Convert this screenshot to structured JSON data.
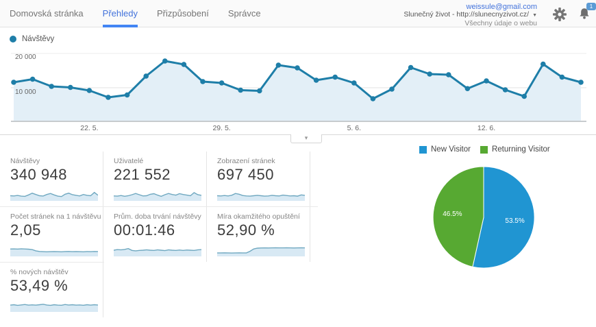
{
  "header": {
    "nav": [
      {
        "label": "Domovská stránka",
        "active": false
      },
      {
        "label": "Přehledy",
        "active": true
      },
      {
        "label": "Přizpůsobení",
        "active": false
      },
      {
        "label": "Správce",
        "active": false
      }
    ],
    "account": {
      "email": "weissule@gmail.com",
      "property": "Slunečný život - http://slunecnyzivot.cz/",
      "caret": "▼",
      "view": "Všechny údaje o webu",
      "notification_count": "1"
    },
    "colors": {
      "active_tab": "#4272db",
      "underline": "#4285f4"
    }
  },
  "timeline": {
    "legend_label": "Návštěvy",
    "collapse_chevron": "▾"
  },
  "metrics": {
    "spark_stroke": "#6fa8c0",
    "spark_fill": "#d8e9f4",
    "cards": [
      {
        "label": "Návštěvy",
        "value": "340 948",
        "spark": [
          0.3,
          0.28,
          0.33,
          0.26,
          0.24,
          0.38,
          0.55,
          0.42,
          0.3,
          0.27,
          0.42,
          0.52,
          0.38,
          0.26,
          0.22,
          0.45,
          0.55,
          0.4,
          0.34,
          0.28,
          0.42,
          0.34,
          0.3,
          0.62,
          0.35
        ]
      },
      {
        "label": "Uživatelé",
        "value": "221 552",
        "spark": [
          0.28,
          0.26,
          0.32,
          0.25,
          0.3,
          0.4,
          0.52,
          0.4,
          0.28,
          0.3,
          0.44,
          0.5,
          0.36,
          0.24,
          0.4,
          0.52,
          0.42,
          0.36,
          0.5,
          0.42,
          0.36,
          0.3,
          0.6,
          0.4,
          0.34
        ]
      },
      {
        "label": "Zobrazení stránek",
        "value": "697 450",
        "spark": [
          0.3,
          0.28,
          0.32,
          0.28,
          0.35,
          0.52,
          0.45,
          0.32,
          0.28,
          0.26,
          0.3,
          0.34,
          0.3,
          0.26,
          0.28,
          0.34,
          0.3,
          0.28,
          0.36,
          0.32,
          0.28,
          0.3,
          0.26,
          0.38,
          0.34
        ]
      },
      {
        "label": "Počet stránek na 1 návštěvu",
        "value": "2,05",
        "spark": [
          0.52,
          0.53,
          0.51,
          0.54,
          0.52,
          0.5,
          0.46,
          0.34,
          0.28,
          0.26,
          0.25,
          0.26,
          0.27,
          0.26,
          0.25,
          0.27,
          0.28,
          0.26,
          0.27,
          0.26,
          0.25,
          0.27,
          0.26,
          0.28,
          0.27
        ]
      },
      {
        "label": "Prům. doba trvání návštěvy",
        "value": "00:01:46",
        "spark": [
          0.4,
          0.46,
          0.44,
          0.48,
          0.56,
          0.38,
          0.34,
          0.38,
          0.4,
          0.44,
          0.4,
          0.38,
          0.44,
          0.4,
          0.36,
          0.44,
          0.4,
          0.38,
          0.42,
          0.38,
          0.42,
          0.4,
          0.38,
          0.44,
          0.46
        ]
      },
      {
        "label": "Míra okamžitého opuštění",
        "value": "52,90 %",
        "spark": [
          0.14,
          0.14,
          0.15,
          0.14,
          0.13,
          0.14,
          0.15,
          0.14,
          0.14,
          0.3,
          0.52,
          0.6,
          0.62,
          0.63,
          0.62,
          0.63,
          0.64,
          0.63,
          0.63,
          0.64,
          0.63,
          0.62,
          0.63,
          0.64,
          0.63
        ]
      },
      {
        "label": "% nových návštěv",
        "value": "53,49 %",
        "spark": [
          0.46,
          0.5,
          0.44,
          0.48,
          0.52,
          0.46,
          0.49,
          0.46,
          0.5,
          0.55,
          0.47,
          0.44,
          0.5,
          0.46,
          0.45,
          0.52,
          0.47,
          0.5,
          0.46,
          0.48,
          0.45,
          0.5,
          0.46,
          0.5,
          0.47
        ]
      }
    ]
  },
  "chart_data": {
    "main_timeline": {
      "type": "line",
      "series_name": "Návštěvy",
      "values": [
        11600,
        12500,
        10400,
        10100,
        9200,
        7200,
        7900,
        13400,
        17800,
        16800,
        11800,
        11400,
        9300,
        9100,
        16600,
        15800,
        12200,
        13100,
        11400,
        6800,
        9600,
        15900,
        14000,
        13800,
        9750,
        12000,
        9400,
        7500,
        16900,
        13100,
        11600
      ],
      "x_tick_labels": [
        "22. 5.",
        "29. 5.",
        "5. 6.",
        "12. 6."
      ],
      "x_tick_indices": [
        4,
        11,
        18,
        25
      ],
      "y_axis_labels": [
        "20 000",
        "10 000"
      ],
      "ylim": [
        0,
        20000
      ],
      "grid": true,
      "line_color": "#1e7ea8",
      "fill_color": "#e3eff7"
    },
    "visitor_pie": {
      "type": "pie",
      "legend_position": "top",
      "slices": [
        {
          "label": "New Visitor",
          "value": 53.5,
          "display": "53.5%",
          "color": "#2095d2"
        },
        {
          "label": "Returning Visitor",
          "value": 46.5,
          "display": "46.5%",
          "color": "#57a932"
        }
      ]
    }
  }
}
